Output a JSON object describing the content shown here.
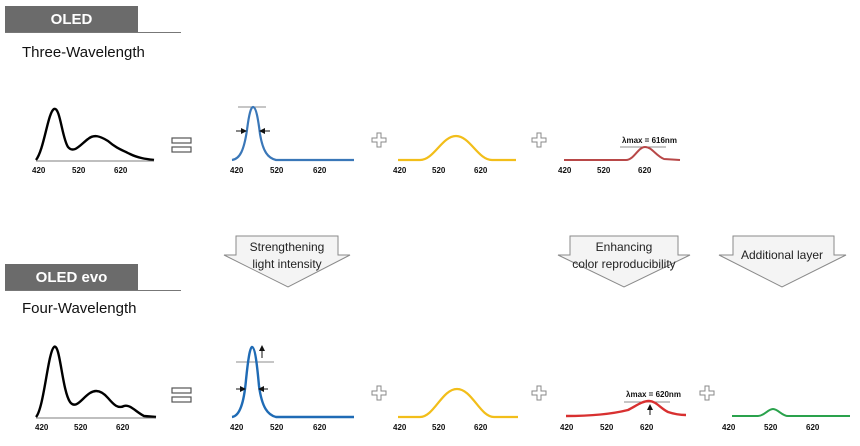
{
  "oled": {
    "tab": "OLED",
    "title": "Three-Wavelength",
    "annotation_red": "λmax = 616nm"
  },
  "oled_evo": {
    "tab": "OLED evo",
    "title": "Four-Wavelength",
    "annotation_red": "λmax = 620nm"
  },
  "arrows": {
    "blue_line1": "Strengthening",
    "blue_line2": "light intensity",
    "red_line1": "Enhancing",
    "red_line2": "color reproducibility",
    "green_line1": "Additional layer"
  },
  "ticks": {
    "t420": "420",
    "t520": "520",
    "t620": "620"
  },
  "colors": {
    "white": "#000000",
    "blue": "#3a77b8",
    "blue_evo": "#1f6bb5",
    "yellow": "#f2be1a",
    "red": "#b84848",
    "red_evo": "#d83030",
    "green": "#2aa24c",
    "tab": "#6b6b6b"
  }
}
